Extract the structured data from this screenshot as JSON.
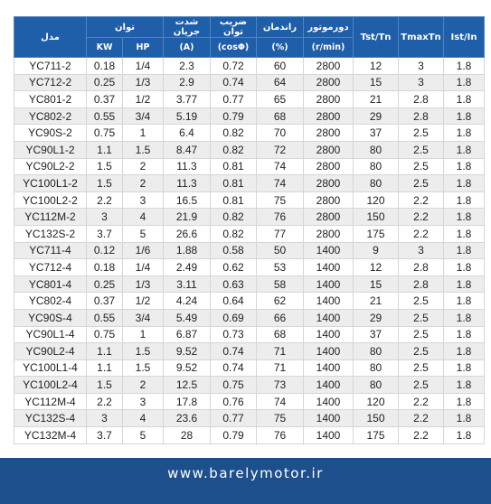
{
  "header": {
    "model": "مدل",
    "power": "توان",
    "current": "شدت جریان",
    "power_factor": "ضریب توان",
    "efficiency": "راندمان",
    "speed": "دورموتور",
    "tst_tn": "Tst/Tn",
    "tmax_tn": "TmaxTn",
    "ist_in": "Ist/In",
    "kw": "KW",
    "hp": "HP",
    "current_unit": "(A)",
    "power_factor_unit": "(cosΦ)",
    "efficiency_unit": "(%)",
    "speed_unit": "(r/min)"
  },
  "table": {
    "rows": [
      [
        "YC711-2",
        "0.18",
        "1/4",
        "2.3",
        "0.72",
        "60",
        "2800",
        "12",
        "3",
        "1.8"
      ],
      [
        "YC712-2",
        "0.25",
        "1/3",
        "2.9",
        "0.74",
        "64",
        "2800",
        "15",
        "3",
        "1.8"
      ],
      [
        "YC801-2",
        "0.37",
        "1/2",
        "3.77",
        "0.77",
        "65",
        "2800",
        "21",
        "2.8",
        "1.8"
      ],
      [
        "YC802-2",
        "0.55",
        "3/4",
        "5.19",
        "0.79",
        "68",
        "2800",
        "29",
        "2.8",
        "1.8"
      ],
      [
        "YC90S-2",
        "0.75",
        "1",
        "6.4",
        "0.82",
        "70",
        "2800",
        "37",
        "2.5",
        "1.8"
      ],
      [
        "YC90L1-2",
        "1.1",
        "1.5",
        "8.47",
        "0.82",
        "72",
        "2800",
        "80",
        "2.5",
        "1.8"
      ],
      [
        "YC90L2-2",
        "1.5",
        "2",
        "11.3",
        "0.81",
        "74",
        "2800",
        "80",
        "2.5",
        "1.8"
      ],
      [
        "YC100L1-2",
        "1.5",
        "2",
        "11.3",
        "0.81",
        "74",
        "2800",
        "80",
        "2.5",
        "1.8"
      ],
      [
        "YC100L2-2",
        "2.2",
        "3",
        "16.5",
        "0.81",
        "75",
        "2800",
        "120",
        "2.2",
        "1.8"
      ],
      [
        "YC112M-2",
        "3",
        "4",
        "21.9",
        "0.82",
        "76",
        "2800",
        "150",
        "2.2",
        "1.8"
      ],
      [
        "YC132S-2",
        "3.7",
        "5",
        "26.6",
        "0.82",
        "77",
        "2800",
        "175",
        "2.2",
        "1.8"
      ],
      [
        "YC711-4",
        "0.12",
        "1/6",
        "1.88",
        "0.58",
        "50",
        "1400",
        "9",
        "3",
        "1.8"
      ],
      [
        "YC712-4",
        "0.18",
        "1/4",
        "2.49",
        "0.62",
        "53",
        "1400",
        "12",
        "2.8",
        "1.8"
      ],
      [
        "YC801-4",
        "0.25",
        "1/3",
        "3.11",
        "0.63",
        "58",
        "1400",
        "15",
        "2.8",
        "1.8"
      ],
      [
        "YC802-4",
        "0.37",
        "1/2",
        "4.24",
        "0.64",
        "62",
        "1400",
        "21",
        "2.5",
        "1.8"
      ],
      [
        "YC90S-4",
        "0.55",
        "3/4",
        "5.49",
        "0.69",
        "66",
        "1400",
        "29",
        "2.5",
        "1.8"
      ],
      [
        "YC90L1-4",
        "0.75",
        "1",
        "6.87",
        "0.73",
        "68",
        "1400",
        "37",
        "2.5",
        "1.8"
      ],
      [
        "YC90L2-4",
        "1.1",
        "1.5",
        "9.52",
        "0.74",
        "71",
        "1400",
        "80",
        "2.5",
        "1.8"
      ],
      [
        "YC100L1-4",
        "1.1",
        "1.5",
        "9.52",
        "0.74",
        "71",
        "1400",
        "80",
        "2.5",
        "1.8"
      ],
      [
        "YC100L2-4",
        "1.5",
        "2",
        "12.5",
        "0.75",
        "73",
        "1400",
        "80",
        "2.5",
        "1.8"
      ],
      [
        "YC112M-4",
        "2.2",
        "3",
        "17.8",
        "0.76",
        "74",
        "1400",
        "120",
        "2.2",
        "1.8"
      ],
      [
        "YC132S-4",
        "3",
        "4",
        "23.6",
        "0.77",
        "75",
        "1400",
        "150",
        "2.2",
        "1.8"
      ],
      [
        "YC132M-4",
        "3.7",
        "5",
        "28",
        "0.79",
        "76",
        "1400",
        "175",
        "2.2",
        "1.8"
      ]
    ]
  },
  "footer": {
    "website": "www.barelymotor.ir"
  }
}
